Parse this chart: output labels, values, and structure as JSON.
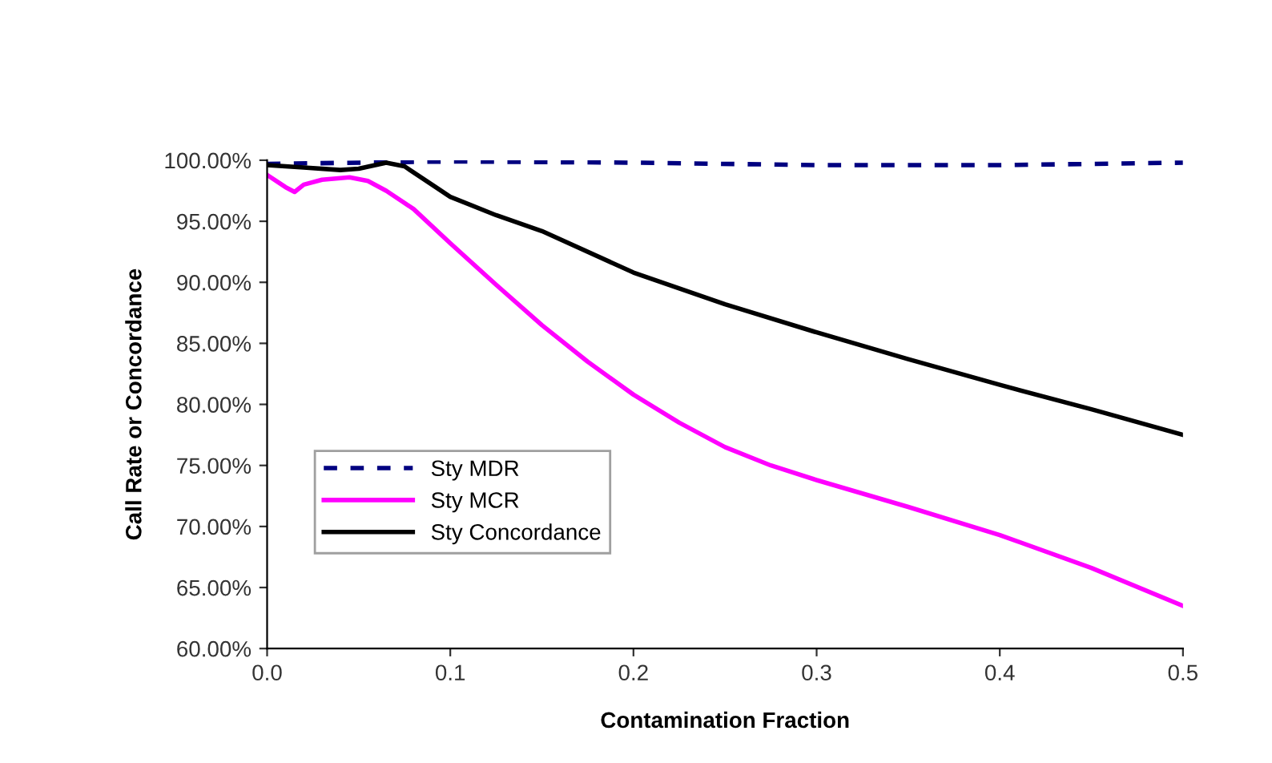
{
  "chart_data": {
    "type": "line",
    "xlabel": "Contamination Fraction",
    "ylabel": "Call Rate or Concordance",
    "xlim": [
      0,
      0.5
    ],
    "xticks": [
      {
        "value": 0,
        "label": "0.0"
      },
      0.1,
      0.2,
      0.3,
      0.4,
      0.5
    ],
    "ylim": [
      60,
      100
    ],
    "yticks": [
      {
        "value": 60,
        "label": "60.00%"
      },
      {
        "value": 65,
        "label": "65.00%"
      },
      {
        "value": 70,
        "label": "70.00%"
      },
      {
        "value": 75,
        "label": "75.00%"
      },
      {
        "value": 80,
        "label": "80.00%"
      },
      {
        "value": 85,
        "label": "85.00%"
      },
      {
        "value": 90,
        "label": "90.00%"
      },
      {
        "value": 95,
        "label": "95.00%"
      },
      {
        "value": 100,
        "label": "100.00%"
      }
    ],
    "grid": false,
    "legend": "left",
    "marker": "none",
    "series": [
      {
        "name": "Sty MDR",
        "color": "#000080",
        "line_style": "dashed",
        "x": [
          0,
          0.1,
          0.2,
          0.3,
          0.4,
          0.5
        ],
        "values": [
          99.7,
          99.9,
          99.8,
          99.6,
          99.6,
          99.8
        ]
      },
      {
        "name": "Sty MCR",
        "color": "#ff00ff",
        "line_style": "solid",
        "x": [
          0,
          0.01,
          0.015,
          0.02,
          0.03,
          0.045,
          0.055,
          0.065,
          0.08,
          0.1,
          0.125,
          0.15,
          0.175,
          0.2,
          0.225,
          0.25,
          0.275,
          0.3,
          0.35,
          0.4,
          0.45,
          0.5
        ],
        "values": [
          98.8,
          97.8,
          97.4,
          98.0,
          98.4,
          98.6,
          98.3,
          97.5,
          96.0,
          93.2,
          89.8,
          86.5,
          83.5,
          80.8,
          78.5,
          76.5,
          75.0,
          73.8,
          71.6,
          69.3,
          66.6,
          63.5
        ]
      },
      {
        "name": "Sty Concordance",
        "color": "#000000",
        "line_style": "solid",
        "x": [
          0,
          0.02,
          0.04,
          0.05,
          0.065,
          0.075,
          0.09,
          0.1,
          0.125,
          0.15,
          0.2,
          0.25,
          0.3,
          0.35,
          0.4,
          0.45,
          0.5
        ],
        "values": [
          99.6,
          99.4,
          99.2,
          99.3,
          99.8,
          99.5,
          98.0,
          97.0,
          95.5,
          94.2,
          90.8,
          88.2,
          85.9,
          83.7,
          81.6,
          79.6,
          77.5
        ]
      }
    ]
  }
}
